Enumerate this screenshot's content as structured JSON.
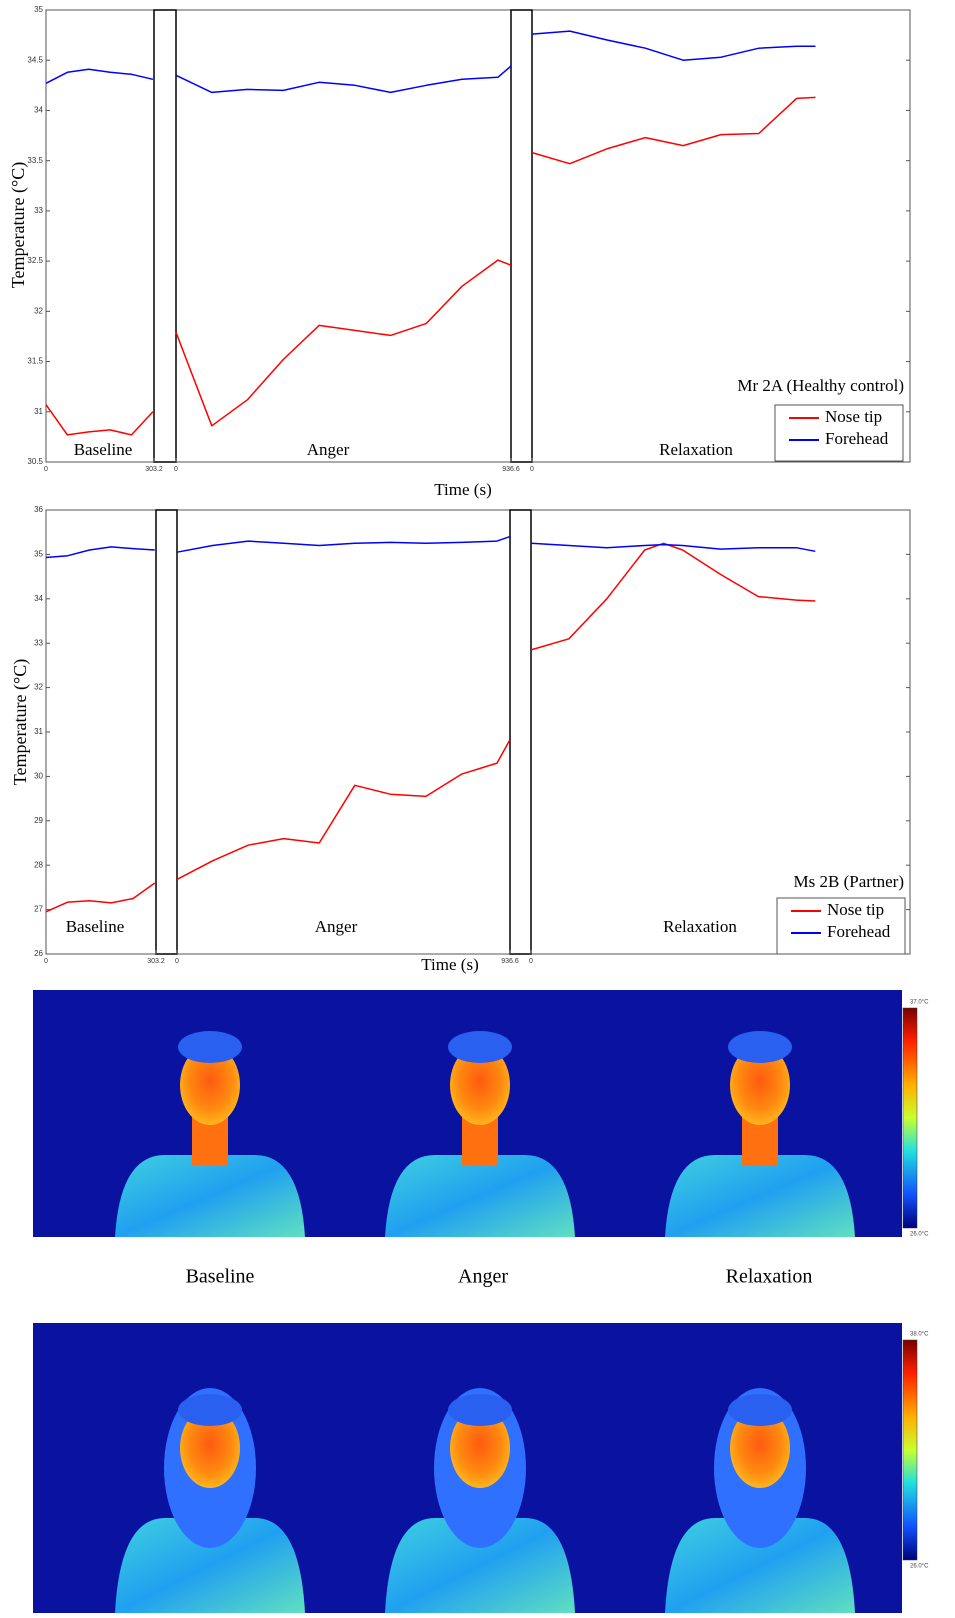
{
  "chart_data": [
    {
      "type": "line",
      "annotation": "Mr 2A (Healthy control)",
      "ylabel": "Temperature (°C)",
      "xlabel": "Time (s)",
      "ylim": [
        30.5,
        35
      ],
      "yticks": [
        30.5,
        31,
        31.5,
        32,
        32.5,
        33,
        33.5,
        34,
        34.5,
        35
      ],
      "legend": "lower right",
      "series": [
        {
          "name": "Nose tip",
          "color": "#ff0000",
          "values": [
            [
              31.07,
              30.77,
              30.8,
              30.82,
              30.77,
              31.0
            ],
            [
              31.79,
              30.86,
              31.12,
              31.52,
              31.86,
              31.81,
              31.76,
              31.88,
              32.25,
              32.51,
              32.46
            ],
            [
              33.58,
              33.47,
              33.62,
              33.73,
              33.65,
              33.76,
              33.77,
              34.12,
              34.13
            ]
          ]
        },
        {
          "name": "Forehead",
          "color": "#0000ff",
          "values": [
            [
              34.27,
              34.38,
              34.41,
              34.38,
              34.36,
              34.31
            ],
            [
              34.35,
              34.18,
              34.21,
              34.2,
              34.28,
              34.25,
              34.18,
              34.25,
              34.31,
              34.33,
              34.44
            ],
            [
              34.76,
              34.79,
              34.7,
              34.62,
              34.5,
              34.53,
              34.62,
              34.64,
              34.64
            ]
          ]
        }
      ],
      "panels": [
        {
          "label": "Baseline",
          "xlim": [
            0,
            303.2
          ],
          "xticks": [
            0,
            303.2
          ],
          "x": [
            0,
            60,
            120,
            180,
            240,
            300
          ]
        },
        {
          "label": "Anger",
          "xlim": [
            0,
            936.6
          ],
          "xticks": [
            0,
            936.6
          ],
          "x": [
            0,
            100,
            200,
            300,
            400,
            500,
            600,
            700,
            800,
            900,
            936
          ]
        },
        {
          "label": "Relaxation",
          "xlim": [
            0,
            400
          ],
          "xticks": [
            0
          ],
          "x": [
            0,
            40,
            80,
            120,
            160,
            200,
            240,
            280,
            300
          ]
        }
      ]
    },
    {
      "type": "line",
      "annotation": "Ms 2B (Partner)",
      "ylabel": "Temperature (°C)",
      "xlabel": "Time (s)",
      "ylim": [
        26,
        36
      ],
      "yticks": [
        26,
        27,
        28,
        29,
        30,
        31,
        32,
        33,
        34,
        35,
        36
      ],
      "legend": "lower right",
      "series": [
        {
          "name": "Nose tip",
          "color": "#ff0000",
          "values": [
            [
              26.95,
              27.17,
              27.2,
              27.15,
              27.25,
              27.6
            ],
            [
              27.68,
              28.1,
              28.45,
              28.6,
              28.5,
              29.8,
              29.6,
              29.55,
              30.05,
              30.3,
              30.82
            ],
            [
              32.85,
              33.1,
              34.0,
              35.1,
              35.25,
              35.1,
              34.55,
              34.05,
              33.97,
              33.95
            ]
          ]
        },
        {
          "name": "Forehead",
          "color": "#0000ff",
          "values": [
            [
              34.93,
              34.97,
              35.1,
              35.17,
              35.13,
              35.1
            ],
            [
              35.05,
              35.2,
              35.3,
              35.25,
              35.2,
              35.25,
              35.27,
              35.25,
              35.27,
              35.3,
              35.4
            ],
            [
              35.25,
              35.2,
              35.15,
              35.2,
              35.22,
              35.2,
              35.12,
              35.15,
              35.15,
              35.07
            ]
          ]
        }
      ],
      "panels": [
        {
          "label": "Baseline",
          "xlim": [
            0,
            303.2
          ],
          "xticks": [
            0,
            303.2
          ],
          "x": [
            0,
            60,
            120,
            180,
            240,
            300
          ]
        },
        {
          "label": "Anger",
          "xlim": [
            0,
            936.6
          ],
          "xticks": [
            0,
            936.6
          ],
          "x": [
            0,
            100,
            200,
            300,
            400,
            500,
            600,
            700,
            800,
            900,
            936
          ]
        },
        {
          "label": "Relaxation",
          "xlim": [
            0,
            400
          ],
          "xticks": [
            0
          ],
          "x": [
            0,
            40,
            80,
            120,
            140,
            160,
            200,
            240,
            280,
            300
          ]
        }
      ]
    }
  ],
  "thermal_images": {
    "captions": [
      "Baseline",
      "Anger",
      "Relaxation"
    ],
    "panels": [
      {
        "scale_max": "37.0°C",
        "scale_min": "26.0°C"
      },
      {
        "scale_max": "38.0°C",
        "scale_min": "26.0°C"
      }
    ]
  }
}
